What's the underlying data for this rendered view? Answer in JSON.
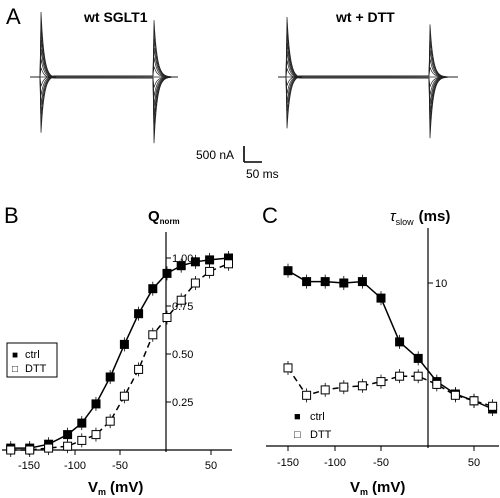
{
  "panel_labels": {
    "a": "A",
    "b": "B",
    "c": "C"
  },
  "panel_a": {
    "left_title": "wt SGLT1",
    "right_title": "wt + DTT",
    "scale_current": "500 nA",
    "scale_time": "50 ms"
  },
  "chart_data": [
    {
      "panel": "B",
      "type": "scatter",
      "title": "",
      "ylabel_main": "Q",
      "ylabel_sub": "norm",
      "xlabel_main": "V",
      "xlabel_sub": "m",
      "xlabel_unit": "(mV)",
      "xlim": [
        -170,
        75
      ],
      "ylim": [
        0,
        1.08
      ],
      "x_ticks": [
        "-150",
        "-100",
        "-50",
        "50"
      ],
      "x_tick_values": [
        -150,
        -100,
        -50,
        50
      ],
      "y_ticks": [
        "1.00",
        "0.75",
        "0.50",
        "0.25"
      ],
      "y_tick_values": [
        1.0,
        0.75,
        0.5,
        0.25
      ],
      "legend_position": "left",
      "legend_marker_ctrl": "■",
      "legend_marker_dtt": "□",
      "series": [
        {
          "name": "ctrl",
          "marker": "filled-square",
          "fit": "solid",
          "x": [
            -165,
            -145,
            -125,
            -105,
            -90,
            -75,
            -60,
            -45,
            -30,
            -15,
            0,
            15,
            30,
            45,
            65
          ],
          "y": [
            0.01,
            0.01,
            0.03,
            0.08,
            0.14,
            0.24,
            0.38,
            0.55,
            0.71,
            0.84,
            0.92,
            0.96,
            0.98,
            0.99,
            1.0
          ]
        },
        {
          "name": "DTT",
          "marker": "open-square",
          "fit": "dashed",
          "x": [
            -165,
            -145,
            -125,
            -105,
            -90,
            -75,
            -60,
            -45,
            -30,
            -15,
            0,
            15,
            30,
            45,
            65
          ],
          "y": [
            0.0,
            0.0,
            0.01,
            0.02,
            0.05,
            0.08,
            0.15,
            0.28,
            0.42,
            0.6,
            0.69,
            0.78,
            0.87,
            0.93,
            0.97
          ]
        }
      ]
    },
    {
      "panel": "C",
      "type": "scatter",
      "title": "",
      "ylabel_sym": "τ",
      "ylabel_sub": "slow",
      "ylabel_unit": "(ms)",
      "xlabel_main": "V",
      "xlabel_sub": "m",
      "xlabel_unit": "(mV)",
      "xlim": [
        -175,
        75
      ],
      "ylim": [
        0,
        13.5
      ],
      "x_ticks": [
        "-150",
        "-100",
        "-50",
        "50"
      ],
      "x_tick_values": [
        -150,
        -100,
        -50,
        50
      ],
      "y_ticks": [
        "10"
      ],
      "y_tick_values": [
        10
      ],
      "legend_position": "bottom-left",
      "legend_marker_ctrl": "■",
      "legend_marker_dtt": "□",
      "series": [
        {
          "name": "ctrl",
          "marker": "filled-square",
          "fit": "solid",
          "x": [
            -150,
            -130,
            -110,
            -90,
            -70,
            -50,
            -30,
            -10,
            10,
            30,
            50,
            70
          ],
          "y": [
            10.9,
            10.1,
            10.1,
            10.0,
            10.1,
            8.9,
            5.7,
            4.5,
            2.8,
            1.9,
            1.4,
            0.8
          ]
        },
        {
          "name": "DTT",
          "marker": "open-square",
          "fit": "dashed",
          "x": [
            -150,
            -130,
            -110,
            -90,
            -70,
            -50,
            -30,
            -10,
            10,
            30,
            50,
            70
          ],
          "y": [
            3.8,
            1.8,
            2.2,
            2.4,
            2.5,
            2.8,
            3.2,
            3.2,
            2.6,
            1.8,
            1.4,
            1.0
          ]
        }
      ]
    }
  ]
}
